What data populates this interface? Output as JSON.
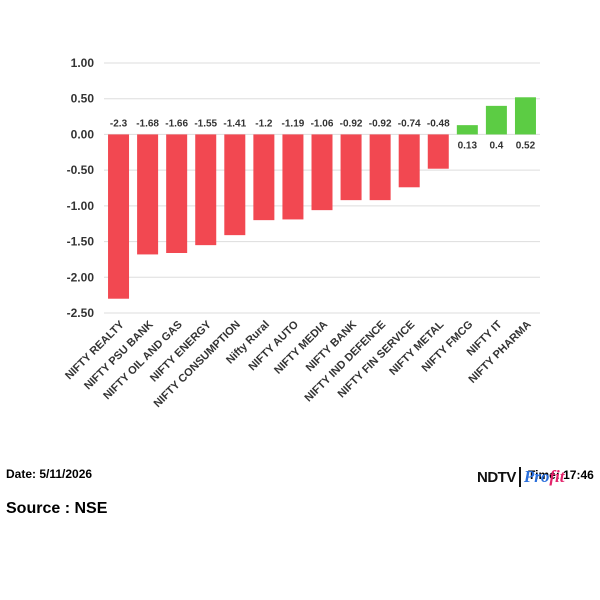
{
  "chart_data": {
    "type": "bar",
    "categories": [
      "NIFTY REALTY",
      "NIFTY PSU BANK",
      "NIFTY OIL AND GAS",
      "NIFTY ENERGY",
      "NIFTY CONSUMPTION",
      "Nifty Rural",
      "NIFTY AUTO",
      "NIFTY MEDIA",
      "NIFTY BANK",
      "NIFTY IND DEFENCE",
      "NIFTY FIN SERVICE",
      "NIFTY METAL",
      "NIFTY FMCG",
      "NIFTY IT",
      "NIFTY PHARMA"
    ],
    "values": [
      -2.3,
      -1.68,
      -1.66,
      -1.55,
      -1.41,
      -1.2,
      -1.19,
      -1.06,
      -0.92,
      -0.92,
      -0.74,
      -0.48,
      0.13,
      0.4,
      0.52
    ],
    "value_labels": [
      "-2.3",
      "-1.68",
      "-1.66",
      "-1.55",
      "-1.41",
      "-1.2",
      "-1.19",
      "-1.06",
      "-0.92",
      "-0.92",
      "-0.74",
      "-0.48",
      "0.13",
      "0.4",
      "0.52"
    ],
    "yticks": [
      1.0,
      0.5,
      0.0,
      -0.5,
      -1.0,
      -1.5,
      -2.0,
      -2.5
    ],
    "ytick_labels": [
      "1.00",
      "0.50",
      "0.00",
      "-0.50",
      "-1.00",
      "-1.50",
      "-2.00",
      "-2.50"
    ],
    "ylim": [
      -2.5,
      1.0
    ],
    "grid": true,
    "colors": {
      "negative": "#f24851",
      "positive": "#5ccc44",
      "grid": "#dddddd"
    }
  },
  "footer": {
    "date": "Date: 5/11/2026",
    "time": "Time: 17:46",
    "source": "Source : NSE",
    "logo_left": "NDTV",
    "logo_right_a": "Pro",
    "logo_right_b": "fit"
  }
}
